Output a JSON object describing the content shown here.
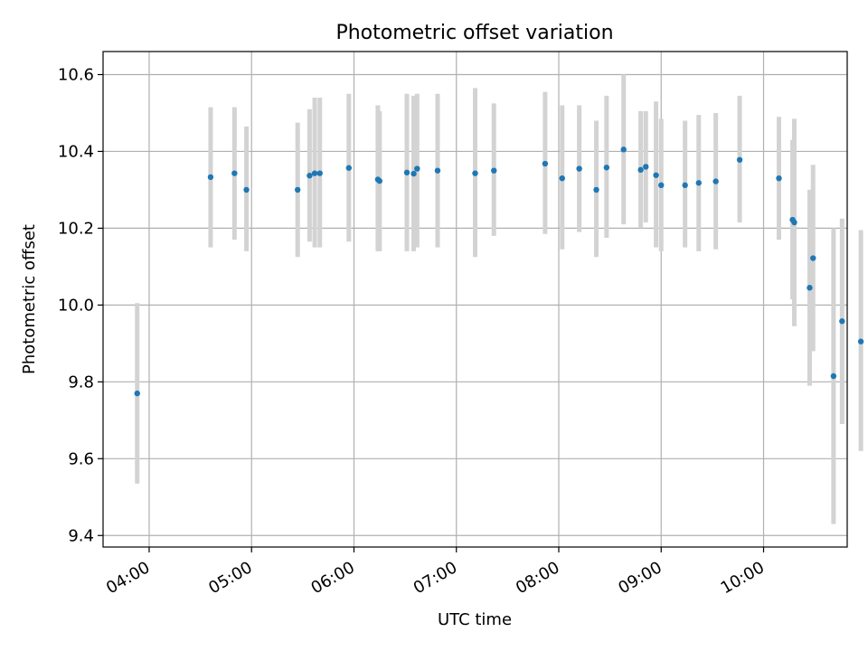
{
  "chart_data": {
    "type": "scatter",
    "title": "Photometric offset variation",
    "xlabel": "UTC time",
    "ylabel": "Photometric offset",
    "xlim": [
      "03:33",
      "10:49"
    ],
    "ylim": [
      9.37,
      10.66
    ],
    "x_ticks": [
      "04:00",
      "05:00",
      "06:00",
      "07:00",
      "08:00",
      "09:00",
      "10:00"
    ],
    "y_ticks": [
      9.4,
      9.6,
      9.8,
      10.0,
      10.2,
      10.4,
      10.6
    ],
    "grid": true,
    "colors": {
      "point": "#1f77b4",
      "errorbar": "#d3d3d3"
    },
    "points": [
      {
        "t": "03:53",
        "y": 9.77,
        "lo": 9.535,
        "hi": 10.005
      },
      {
        "t": "04:36",
        "y": 10.333,
        "lo": 10.15,
        "hi": 10.515
      },
      {
        "t": "04:50",
        "y": 10.343,
        "lo": 10.17,
        "hi": 10.515
      },
      {
        "t": "04:57",
        "y": 10.3,
        "lo": 10.14,
        "hi": 10.465
      },
      {
        "t": "05:27",
        "y": 10.3,
        "lo": 10.125,
        "hi": 10.475
      },
      {
        "t": "05:34",
        "y": 10.337,
        "lo": 10.165,
        "hi": 10.51
      },
      {
        "t": "05:37",
        "y": 10.343,
        "lo": 10.15,
        "hi": 10.54
      },
      {
        "t": "05:40",
        "y": 10.343,
        "lo": 10.15,
        "hi": 10.54
      },
      {
        "t": "05:57",
        "y": 10.357,
        "lo": 10.165,
        "hi": 10.55
      },
      {
        "t": "06:14",
        "y": 10.327,
        "lo": 10.14,
        "hi": 10.52
      },
      {
        "t": "06:15",
        "y": 10.323,
        "lo": 10.14,
        "hi": 10.505
      },
      {
        "t": "06:31",
        "y": 10.345,
        "lo": 10.14,
        "hi": 10.55
      },
      {
        "t": "06:35",
        "y": 10.342,
        "lo": 10.14,
        "hi": 10.545
      },
      {
        "t": "06:37",
        "y": 10.355,
        "lo": 10.15,
        "hi": 10.55
      },
      {
        "t": "06:49",
        "y": 10.35,
        "lo": 10.15,
        "hi": 10.55
      },
      {
        "t": "07:11",
        "y": 10.343,
        "lo": 10.125,
        "hi": 10.565
      },
      {
        "t": "07:22",
        "y": 10.35,
        "lo": 10.18,
        "hi": 10.525
      },
      {
        "t": "07:52",
        "y": 10.368,
        "lo": 10.185,
        "hi": 10.555
      },
      {
        "t": "08:02",
        "y": 10.33,
        "lo": 10.145,
        "hi": 10.52
      },
      {
        "t": "08:12",
        "y": 10.355,
        "lo": 10.19,
        "hi": 10.52
      },
      {
        "t": "08:22",
        "y": 10.3,
        "lo": 10.125,
        "hi": 10.48
      },
      {
        "t": "08:28",
        "y": 10.358,
        "lo": 10.175,
        "hi": 10.545
      },
      {
        "t": "08:38",
        "y": 10.405,
        "lo": 10.21,
        "hi": 10.6
      },
      {
        "t": "08:48",
        "y": 10.352,
        "lo": 10.2,
        "hi": 10.505
      },
      {
        "t": "08:51",
        "y": 10.36,
        "lo": 10.215,
        "hi": 10.505
      },
      {
        "t": "08:57",
        "y": 10.338,
        "lo": 10.15,
        "hi": 10.53
      },
      {
        "t": "09:00",
        "y": 10.312,
        "lo": 10.14,
        "hi": 10.485
      },
      {
        "t": "09:14",
        "y": 10.312,
        "lo": 10.15,
        "hi": 10.48
      },
      {
        "t": "09:22",
        "y": 10.318,
        "lo": 10.14,
        "hi": 10.495
      },
      {
        "t": "09:32",
        "y": 10.322,
        "lo": 10.145,
        "hi": 10.5
      },
      {
        "t": "09:46",
        "y": 10.378,
        "lo": 10.215,
        "hi": 10.545
      },
      {
        "t": "10:09",
        "y": 10.33,
        "lo": 10.17,
        "hi": 10.49
      },
      {
        "t": "10:17",
        "y": 10.222,
        "lo": 10.015,
        "hi": 10.43
      },
      {
        "t": "10:18",
        "y": 10.215,
        "lo": 9.945,
        "hi": 10.485
      },
      {
        "t": "10:27",
        "y": 10.045,
        "lo": 9.79,
        "hi": 10.3
      },
      {
        "t": "10:29",
        "y": 10.122,
        "lo": 9.88,
        "hi": 10.365
      },
      {
        "t": "10:41",
        "y": 9.815,
        "lo": 9.43,
        "hi": 10.2
      },
      {
        "t": "10:46",
        "y": 9.958,
        "lo": 9.69,
        "hi": 10.225
      },
      {
        "t": "10:57",
        "y": 9.905,
        "lo": 9.62,
        "hi": 10.195
      }
    ]
  }
}
